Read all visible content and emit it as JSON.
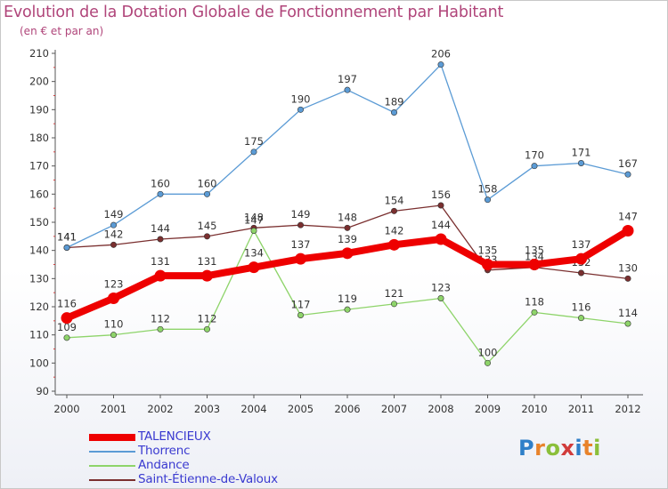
{
  "title": "Evolution de la Dotation Globale de Fonctionnement par Habitant",
  "subtitle": "(en € et par an)",
  "logo": {
    "letters": [
      "P",
      "r",
      "o",
      "x",
      "i",
      "t",
      "i"
    ],
    "colors": [
      "#2f7fc8",
      "#e8832b",
      "#8bbf3a",
      "#d13b3b",
      "#2f7fc8",
      "#e8832b",
      "#8bbf3a"
    ]
  },
  "chart_data": {
    "type": "line",
    "title": "Evolution de la Dotation Globale de Fonctionnement par Habitant",
    "subtitle": "(en € et par an)",
    "x": [
      "2000",
      "2001",
      "2002",
      "2003",
      "2004",
      "2005",
      "2006",
      "2007",
      "2008",
      "2009",
      "2010",
      "2011",
      "2012"
    ],
    "ylim": [
      90,
      210
    ],
    "yticks": [
      90,
      100,
      110,
      120,
      130,
      140,
      150,
      160,
      170,
      180,
      190,
      200,
      210
    ],
    "grid": false,
    "legend_position": "bottom-left",
    "series": [
      {
        "name": "Saint-Étienne-de-Valoux",
        "color": "#7a2f2f",
        "values": [
          141,
          142,
          144,
          145,
          148,
          149,
          148,
          154,
          156,
          133,
          134,
          132,
          130
        ],
        "thick": false
      },
      {
        "name": "Andance",
        "color": "#8ed46a",
        "values": [
          109,
          110,
          112,
          112,
          147,
          117,
          119,
          121,
          123,
          100,
          118,
          116,
          114
        ],
        "thick": false
      },
      {
        "name": "Thorrenc",
        "color": "#5b9bd5",
        "values": [
          141,
          149,
          160,
          160,
          175,
          190,
          197,
          189,
          206,
          158,
          170,
          171,
          167
        ],
        "thick": false
      },
      {
        "name": "TALENCIEUX",
        "color": "#ee0000",
        "values": [
          116,
          123,
          131,
          131,
          134,
          137,
          139,
          142,
          144,
          135,
          135,
          137,
          147
        ],
        "thick": true
      }
    ],
    "legend_order": [
      "TALENCIEUX",
      "Thorrenc",
      "Andance",
      "Saint-Étienne-de-Valoux"
    ]
  }
}
